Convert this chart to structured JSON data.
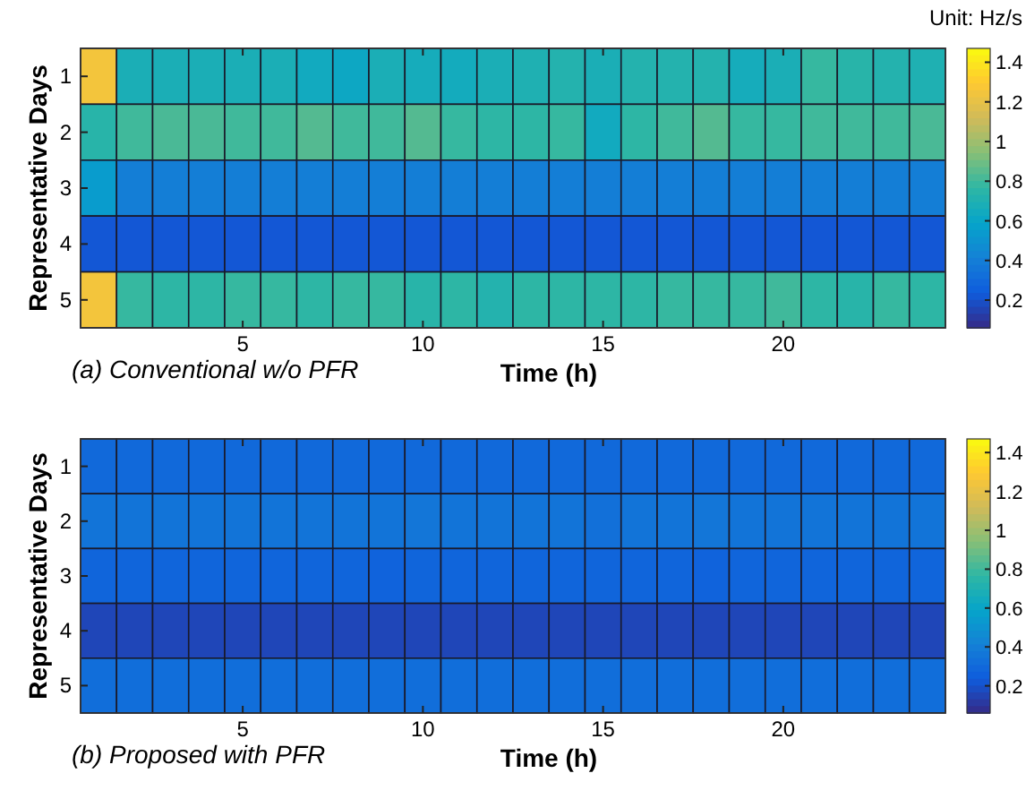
{
  "chart_data": [
    {
      "type": "heatmap",
      "title": "(a) Conventional w/o PFR",
      "xlabel": "Time (h)",
      "ylabel": "Representative Days",
      "clabel": "Unit: Hz/s",
      "categories": [
        null,
        null,
        null,
        null,
        "5",
        null,
        null,
        null,
        null,
        "10",
        null,
        null,
        null,
        null,
        "15",
        null,
        null,
        null,
        null,
        "20",
        null,
        null,
        null,
        null
      ],
      "y_categories": [
        "1",
        "2",
        "3",
        "4",
        "5"
      ],
      "cells": [
        [
          1.25,
          0.68,
          0.68,
          0.68,
          0.68,
          0.68,
          0.64,
          0.62,
          0.68,
          0.66,
          0.65,
          0.68,
          0.7,
          0.72,
          0.68,
          0.72,
          0.72,
          0.72,
          0.66,
          0.68,
          0.78,
          0.74,
          0.72,
          0.7
        ],
        [
          0.74,
          0.8,
          0.82,
          0.82,
          0.8,
          0.8,
          0.84,
          0.8,
          0.8,
          0.84,
          0.78,
          0.76,
          0.76,
          0.78,
          0.64,
          0.76,
          0.8,
          0.84,
          0.78,
          0.78,
          0.8,
          0.8,
          0.8,
          0.82
        ],
        [
          0.55,
          0.4,
          0.4,
          0.4,
          0.4,
          0.4,
          0.4,
          0.4,
          0.4,
          0.4,
          0.4,
          0.4,
          0.4,
          0.4,
          0.4,
          0.4,
          0.4,
          0.4,
          0.4,
          0.4,
          0.4,
          0.4,
          0.4,
          0.4
        ],
        [
          0.22,
          0.22,
          0.22,
          0.22,
          0.22,
          0.22,
          0.22,
          0.22,
          0.22,
          0.22,
          0.22,
          0.22,
          0.22,
          0.22,
          0.22,
          0.22,
          0.22,
          0.22,
          0.22,
          0.22,
          0.22,
          0.22,
          0.22,
          0.22
        ],
        [
          1.25,
          0.78,
          0.76,
          0.76,
          0.78,
          0.78,
          0.76,
          0.78,
          0.78,
          0.74,
          0.76,
          0.72,
          0.76,
          0.76,
          0.76,
          0.76,
          0.78,
          0.78,
          0.78,
          0.8,
          0.76,
          0.74,
          0.78,
          0.76
        ]
      ],
      "clim": [
        0.06,
        1.47
      ],
      "cticks": [
        0.2,
        0.4,
        0.6,
        0.8,
        1,
        1.2,
        1.4
      ]
    },
    {
      "type": "heatmap",
      "title": "(b) Proposed with PFR",
      "xlabel": "Time (h)",
      "ylabel": "Representative Days",
      "categories": [
        null,
        null,
        null,
        null,
        "5",
        null,
        null,
        null,
        null,
        "10",
        null,
        null,
        null,
        null,
        "15",
        null,
        null,
        null,
        null,
        "20",
        null,
        null,
        null,
        null
      ],
      "y_categories": [
        "1",
        "2",
        "3",
        "4",
        "5"
      ],
      "cells": [
        [
          0.3,
          0.3,
          0.3,
          0.3,
          0.3,
          0.3,
          0.3,
          0.3,
          0.3,
          0.3,
          0.3,
          0.3,
          0.3,
          0.3,
          0.3,
          0.3,
          0.3,
          0.3,
          0.3,
          0.3,
          0.3,
          0.3,
          0.3,
          0.3
        ],
        [
          0.35,
          0.35,
          0.35,
          0.35,
          0.35,
          0.35,
          0.35,
          0.35,
          0.35,
          0.36,
          0.35,
          0.35,
          0.35,
          0.35,
          0.33,
          0.35,
          0.35,
          0.36,
          0.35,
          0.35,
          0.35,
          0.35,
          0.35,
          0.35
        ],
        [
          0.28,
          0.28,
          0.28,
          0.28,
          0.28,
          0.28,
          0.28,
          0.28,
          0.27,
          0.28,
          0.28,
          0.28,
          0.28,
          0.28,
          0.28,
          0.28,
          0.28,
          0.27,
          0.28,
          0.28,
          0.28,
          0.28,
          0.28,
          0.28
        ],
        [
          0.16,
          0.16,
          0.16,
          0.16,
          0.16,
          0.16,
          0.16,
          0.16,
          0.16,
          0.16,
          0.16,
          0.16,
          0.16,
          0.16,
          0.16,
          0.16,
          0.16,
          0.16,
          0.16,
          0.16,
          0.16,
          0.16,
          0.16,
          0.16
        ],
        [
          0.32,
          0.32,
          0.32,
          0.32,
          0.32,
          0.32,
          0.32,
          0.32,
          0.32,
          0.32,
          0.32,
          0.32,
          0.32,
          0.32,
          0.32,
          0.32,
          0.32,
          0.32,
          0.32,
          0.32,
          0.32,
          0.32,
          0.32,
          0.32
        ]
      ],
      "clim": [
        0.06,
        1.47
      ],
      "cticks": [
        0.2,
        0.4,
        0.6,
        0.8,
        1,
        1.2,
        1.4
      ]
    }
  ]
}
